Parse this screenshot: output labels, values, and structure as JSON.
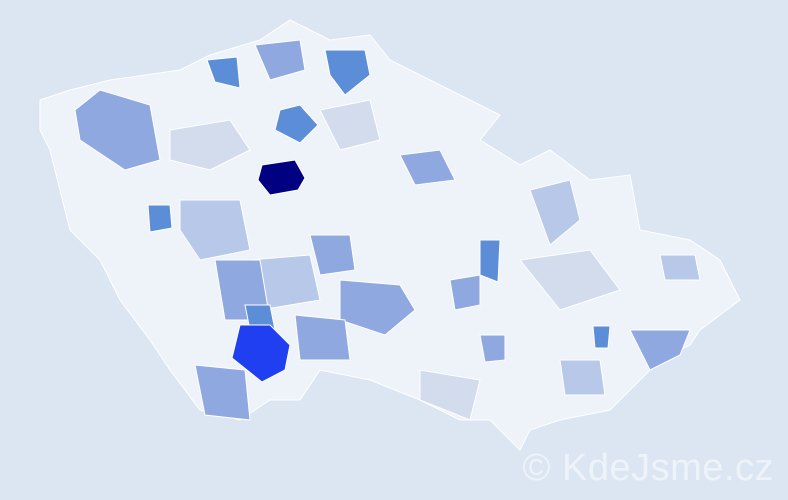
{
  "watermark": "© KdeJsme.cz",
  "colors": {
    "background": "#dce6f2",
    "base": "#eef2f9",
    "light": "#d3dced",
    "light_blue": "#b7c8e8",
    "medium_blue": "#8fa8e0",
    "blue": "#5b8ed6",
    "bright_blue": "#1f3ff0",
    "navy": "#000080"
  }
}
